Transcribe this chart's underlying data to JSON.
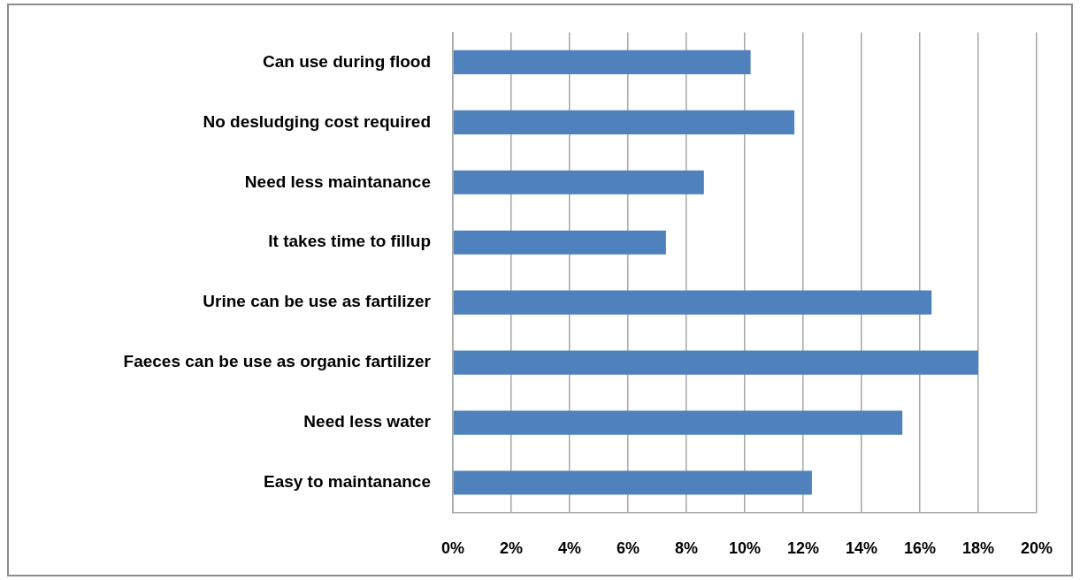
{
  "chart_data": {
    "type": "bar",
    "orientation": "horizontal",
    "categories": [
      "Can use during flood",
      "No desludging cost required",
      "Need less maintanance",
      "It takes time to fillup",
      "Urine can be use as fartilizer",
      "Faeces can be use as organic fartilizer",
      "Need less water",
      "Easy to maintanance"
    ],
    "values": [
      10.2,
      11.7,
      8.6,
      7.3,
      16.4,
      18.0,
      15.4,
      12.3
    ],
    "color": "#4f81bd",
    "xlim": [
      0,
      20
    ],
    "xticks": [
      {
        "value": 0,
        "label": "0%"
      },
      {
        "value": 2,
        "label": "2%"
      },
      {
        "value": 4,
        "label": "4%"
      },
      {
        "value": 6,
        "label": "6%"
      },
      {
        "value": 8,
        "label": "8%"
      },
      {
        "value": 10,
        "label": "10%"
      },
      {
        "value": 12,
        "label": "12%"
      },
      {
        "value": 14,
        "label": "14%"
      },
      {
        "value": 16,
        "label": "16%"
      },
      {
        "value": 18,
        "label": "18%"
      },
      {
        "value": 20,
        "label": "20%"
      }
    ],
    "grid": "x"
  }
}
